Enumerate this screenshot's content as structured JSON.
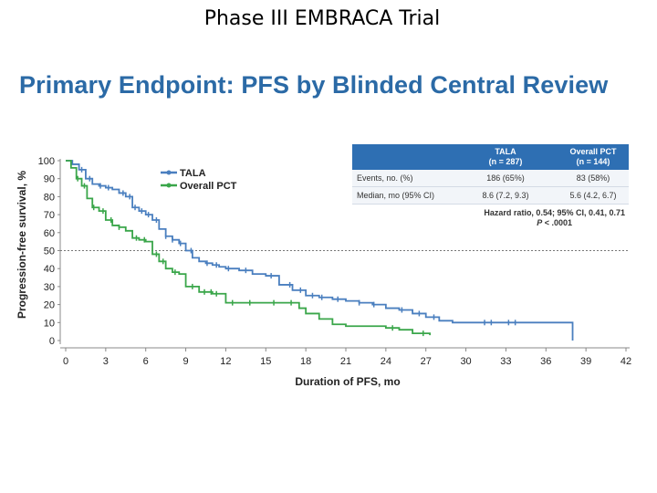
{
  "slide": {
    "title": "Phase III EMBRACA Trial",
    "headline": "Primary Endpoint: PFS by Blinded Central Review"
  },
  "table": {
    "col1_line1": "TALA",
    "col1_line2": "(n = 287)",
    "col2_line1": "Overall PCT",
    "col2_line2": "(n = 144)",
    "rows": [
      {
        "label": "Events, no. (%)",
        "v1": "186 (65%)",
        "v2": "83 (58%)"
      },
      {
        "label": "Median, mo (95% CI)",
        "v1": "8.6 (7.2, 9.3)",
        "v2": "5.6 (4.2, 6.7)"
      }
    ],
    "hazard": "Hazard ratio, 0.54; 95% CI, 0.41, 0.71",
    "p_prefix": "P",
    "p_value": " < .0001"
  },
  "chart_data": {
    "type": "line",
    "title": "",
    "xlabel": "Duration of PFS, mo",
    "ylabel": "Progression-free survival, %",
    "xlim": [
      0,
      42
    ],
    "ylim": [
      0,
      100
    ],
    "xticks": [
      0,
      3,
      6,
      9,
      12,
      15,
      18,
      21,
      24,
      27,
      30,
      33,
      36,
      39,
      42
    ],
    "yticks": [
      0,
      10,
      20,
      30,
      40,
      50,
      60,
      70,
      80,
      90,
      100
    ],
    "reference_line_y": 50,
    "legend_position": "top-left",
    "series": [
      {
        "name": "TALA",
        "color": "#4a7fbf",
        "step_x": [
          0,
          0.5,
          1,
          1.5,
          2,
          2.5,
          3,
          3.5,
          4,
          4.5,
          5,
          5.5,
          6,
          6.5,
          7,
          7.5,
          8,
          8.5,
          9,
          9.5,
          10,
          10.5,
          11,
          11.5,
          12,
          13,
          14,
          15,
          16,
          17,
          18,
          19,
          20,
          21,
          22,
          23,
          24,
          25,
          26,
          27,
          28,
          29,
          30,
          31,
          32,
          33,
          34,
          35,
          36,
          37,
          37.5,
          38
        ],
        "step_y": [
          100,
          98,
          95,
          90,
          87,
          86,
          85,
          84,
          82,
          80,
          74,
          72,
          70,
          67,
          62,
          58,
          56,
          54,
          50,
          46,
          44,
          43,
          42,
          41,
          40,
          39,
          37,
          36,
          31,
          28,
          25,
          24,
          23,
          22,
          21,
          20,
          18,
          17,
          15,
          13,
          11,
          10,
          10,
          10,
          10,
          10,
          10,
          10,
          10,
          10,
          10,
          0
        ],
        "censor_x": [
          1.2,
          1.8,
          2.6,
          3.2,
          4.3,
          4.8,
          5.2,
          5.7,
          6.2,
          6.8,
          7.5,
          8.0,
          8.6,
          9.4,
          10.6,
          11.3,
          12.2,
          13.5,
          15.4,
          16.8,
          17.6,
          18.5,
          19.2,
          20.4,
          22.0,
          23.1,
          25.2,
          26.5,
          27.6,
          31.4,
          31.9,
          33.2,
          33.7
        ]
      },
      {
        "name": "Overall PCT",
        "color": "#3aa64a",
        "step_x": [
          0,
          0.4,
          0.8,
          1.2,
          1.6,
          2,
          2.5,
          3,
          3.5,
          4,
          4.5,
          5,
          5.5,
          6,
          6.5,
          7,
          7.5,
          8,
          8.5,
          9,
          10,
          11,
          11.5,
          12,
          13,
          14,
          15,
          16,
          17,
          17.5,
          18,
          19,
          20,
          21,
          22,
          23,
          24,
          25,
          26,
          27.3
        ],
        "step_y": [
          100,
          96,
          90,
          86,
          79,
          74,
          72,
          67,
          64,
          63,
          61,
          57,
          56,
          55,
          48,
          44,
          40,
          38,
          37,
          30,
          27,
          26,
          26,
          21,
          21,
          21,
          21,
          21,
          21,
          18,
          15,
          12,
          9,
          8,
          8,
          8,
          7,
          6,
          4,
          3
        ],
        "censor_x": [
          0.9,
          1.4,
          2.1,
          2.8,
          3.4,
          4.0,
          5.3,
          5.9,
          6.8,
          7.3,
          8.2,
          9.5,
          10.4,
          10.9,
          11.3,
          12.5,
          13.8,
          15.6,
          16.9,
          24.5,
          26.8
        ]
      }
    ]
  }
}
